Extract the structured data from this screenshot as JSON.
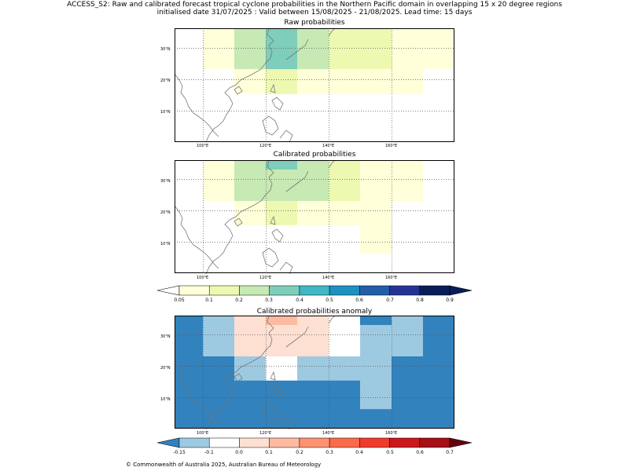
{
  "header": {
    "title_line1": "ACCESS_S2: Raw and calibrated forecast tropical cyclone probabilities in the Northern Pacific domain in overlapping 15 x 20 degree regions",
    "title_line2": "initialised date 31/07/2025 :  Valid between 15/08/2025 - 21/08/2025. Lead time: 15 days"
  },
  "maps": [
    {
      "title": "Raw probabilities",
      "x_ticks": [
        "100°E",
        "120°E",
        "140°E",
        "160°E"
      ],
      "y_ticks": [
        "30°N",
        "20°N",
        "10°N"
      ],
      "cells": [
        {
          "lon": [
            110,
            120
          ],
          "lat": [
            23.2,
            37
          ],
          "color": "#c7e9b4"
        },
        {
          "lon": [
            120,
            130
          ],
          "lat": [
            23.2,
            37
          ],
          "color": "#7fcdbb"
        },
        {
          "lon": [
            130,
            140
          ],
          "lat": [
            23.2,
            37
          ],
          "color": "#c7e9b4"
        },
        {
          "lon": [
            140,
            160
          ],
          "lat": [
            23.2,
            37
          ],
          "color": "#edf8b1"
        },
        {
          "lon": [
            100,
            110
          ],
          "lat": [
            23.2,
            37
          ],
          "color": "#ffffd9"
        },
        {
          "lon": [
            160,
            180
          ],
          "lat": [
            23.2,
            37
          ],
          "color": "#ffffd9"
        },
        {
          "lon": [
            110,
            120
          ],
          "lat": [
            15.3,
            23.2
          ],
          "color": "#ffffd9"
        },
        {
          "lon": [
            120,
            130
          ],
          "lat": [
            15.3,
            23.2
          ],
          "color": "#edf8b1"
        },
        {
          "lon": [
            130,
            170
          ],
          "lat": [
            15.3,
            23.2
          ],
          "color": "#ffffd9"
        }
      ]
    },
    {
      "title": "Calibrated probabilities",
      "x_ticks": [
        "100°E",
        "120°E",
        "140°E",
        "160°E"
      ],
      "y_ticks": [
        "30°N",
        "20°N",
        "10°N"
      ],
      "cells": [
        {
          "lon": [
            100,
            110
          ],
          "lat": [
            23,
            37
          ],
          "color": "#ffffd9"
        },
        {
          "lon": [
            110,
            120
          ],
          "lat": [
            33,
            37
          ],
          "color": "#c7e9b4"
        },
        {
          "lon": [
            120,
            130
          ],
          "lat": [
            33,
            37
          ],
          "color": "#7fcdbb"
        },
        {
          "lon": [
            130,
            140
          ],
          "lat": [
            33,
            37
          ],
          "color": "#c7e9b4"
        },
        {
          "lon": [
            140,
            150
          ],
          "lat": [
            33,
            37
          ],
          "color": "#edf8b1"
        },
        {
          "lon": [
            150,
            170
          ],
          "lat": [
            30,
            37
          ],
          "color": "#ffffd9"
        },
        {
          "lon": [
            110,
            140
          ],
          "lat": [
            23,
            33
          ],
          "color": "#c7e9b4"
        },
        {
          "lon": [
            140,
            150
          ],
          "lat": [
            23,
            33
          ],
          "color": "#edf8b1"
        },
        {
          "lon": [
            150,
            170
          ],
          "lat": [
            23,
            30
          ],
          "color": "#ffffd9"
        },
        {
          "lon": [
            110,
            120
          ],
          "lat": [
            15.3,
            23
          ],
          "color": "#ffffd9"
        },
        {
          "lon": [
            120,
            130
          ],
          "lat": [
            15.3,
            23
          ],
          "color": "#edf8b1"
        },
        {
          "lon": [
            130,
            150
          ],
          "lat": [
            15.3,
            23
          ],
          "color": "#ffffd9"
        },
        {
          "lon": [
            150,
            160
          ],
          "lat": [
            6.2,
            23
          ],
          "color": "#ffffd9"
        }
      ]
    },
    {
      "title": "Calibrated probabilities anomaly",
      "x_ticks": [
        "100°E",
        "120°E",
        "140°E",
        "160°E"
      ],
      "y_ticks": [
        "30°N",
        "20°N",
        "10°N"
      ],
      "cells": [
        {
          "lon": [
            91,
            180
          ],
          "lat": [
            0,
            37
          ],
          "color": "#3182bd"
        },
        {
          "lon": [
            100,
            110
          ],
          "lat": [
            23,
            37
          ],
          "color": "#9ecae1"
        },
        {
          "lon": [
            110,
            140
          ],
          "lat": [
            23,
            37
          ],
          "color": "#fee0d2"
        },
        {
          "lon": [
            120,
            130
          ],
          "lat": [
            33,
            37
          ],
          "color": "#fcbba1"
        },
        {
          "lon": [
            140,
            150
          ],
          "lat": [
            23,
            37
          ],
          "color": "#ffffff"
        },
        {
          "lon": [
            150,
            160
          ],
          "lat": [
            6.2,
            33
          ],
          "color": "#9ecae1"
        },
        {
          "lon": [
            160,
            170
          ],
          "lat": [
            23,
            37
          ],
          "color": "#9ecae1"
        },
        {
          "lon": [
            110,
            120
          ],
          "lat": [
            15.3,
            23
          ],
          "color": "#9ecae1"
        },
        {
          "lon": [
            120,
            130
          ],
          "lat": [
            15.3,
            23
          ],
          "color": "#ffffff"
        },
        {
          "lon": [
            130,
            150
          ],
          "lat": [
            15.3,
            23
          ],
          "color": "#9ecae1"
        }
      ]
    }
  ],
  "colorbars": [
    {
      "ticks": [
        "0.05",
        "0.1",
        "0.2",
        "0.3",
        "0.4",
        "0.5",
        "0.6",
        "0.7",
        "0.8",
        "0.9"
      ],
      "under_color": "#ffffff",
      "over_color": "#081d58",
      "colors": [
        "#ffffd9",
        "#edf8b1",
        "#c7e9b4",
        "#7fcdbb",
        "#41b6c4",
        "#1d91c0",
        "#225ea8",
        "#253494",
        "#081d58"
      ]
    },
    {
      "ticks": [
        "-0.15",
        "-0.1",
        "0.0",
        "0.1",
        "0.2",
        "0.3",
        "0.4",
        "0.5",
        "0.6",
        "0.7"
      ],
      "under_color": "#3182bd",
      "over_color": "#67000d",
      "colors": [
        "#9ecae1",
        "#ffffff",
        "#fee0d2",
        "#fcbba1",
        "#fc9272",
        "#fb6a4a",
        "#ef3b2c",
        "#cb181d",
        "#a50f15"
      ]
    }
  ],
  "footer": "© Commonwealth of Australia 2025, Australian Bureau of Meteorology"
}
